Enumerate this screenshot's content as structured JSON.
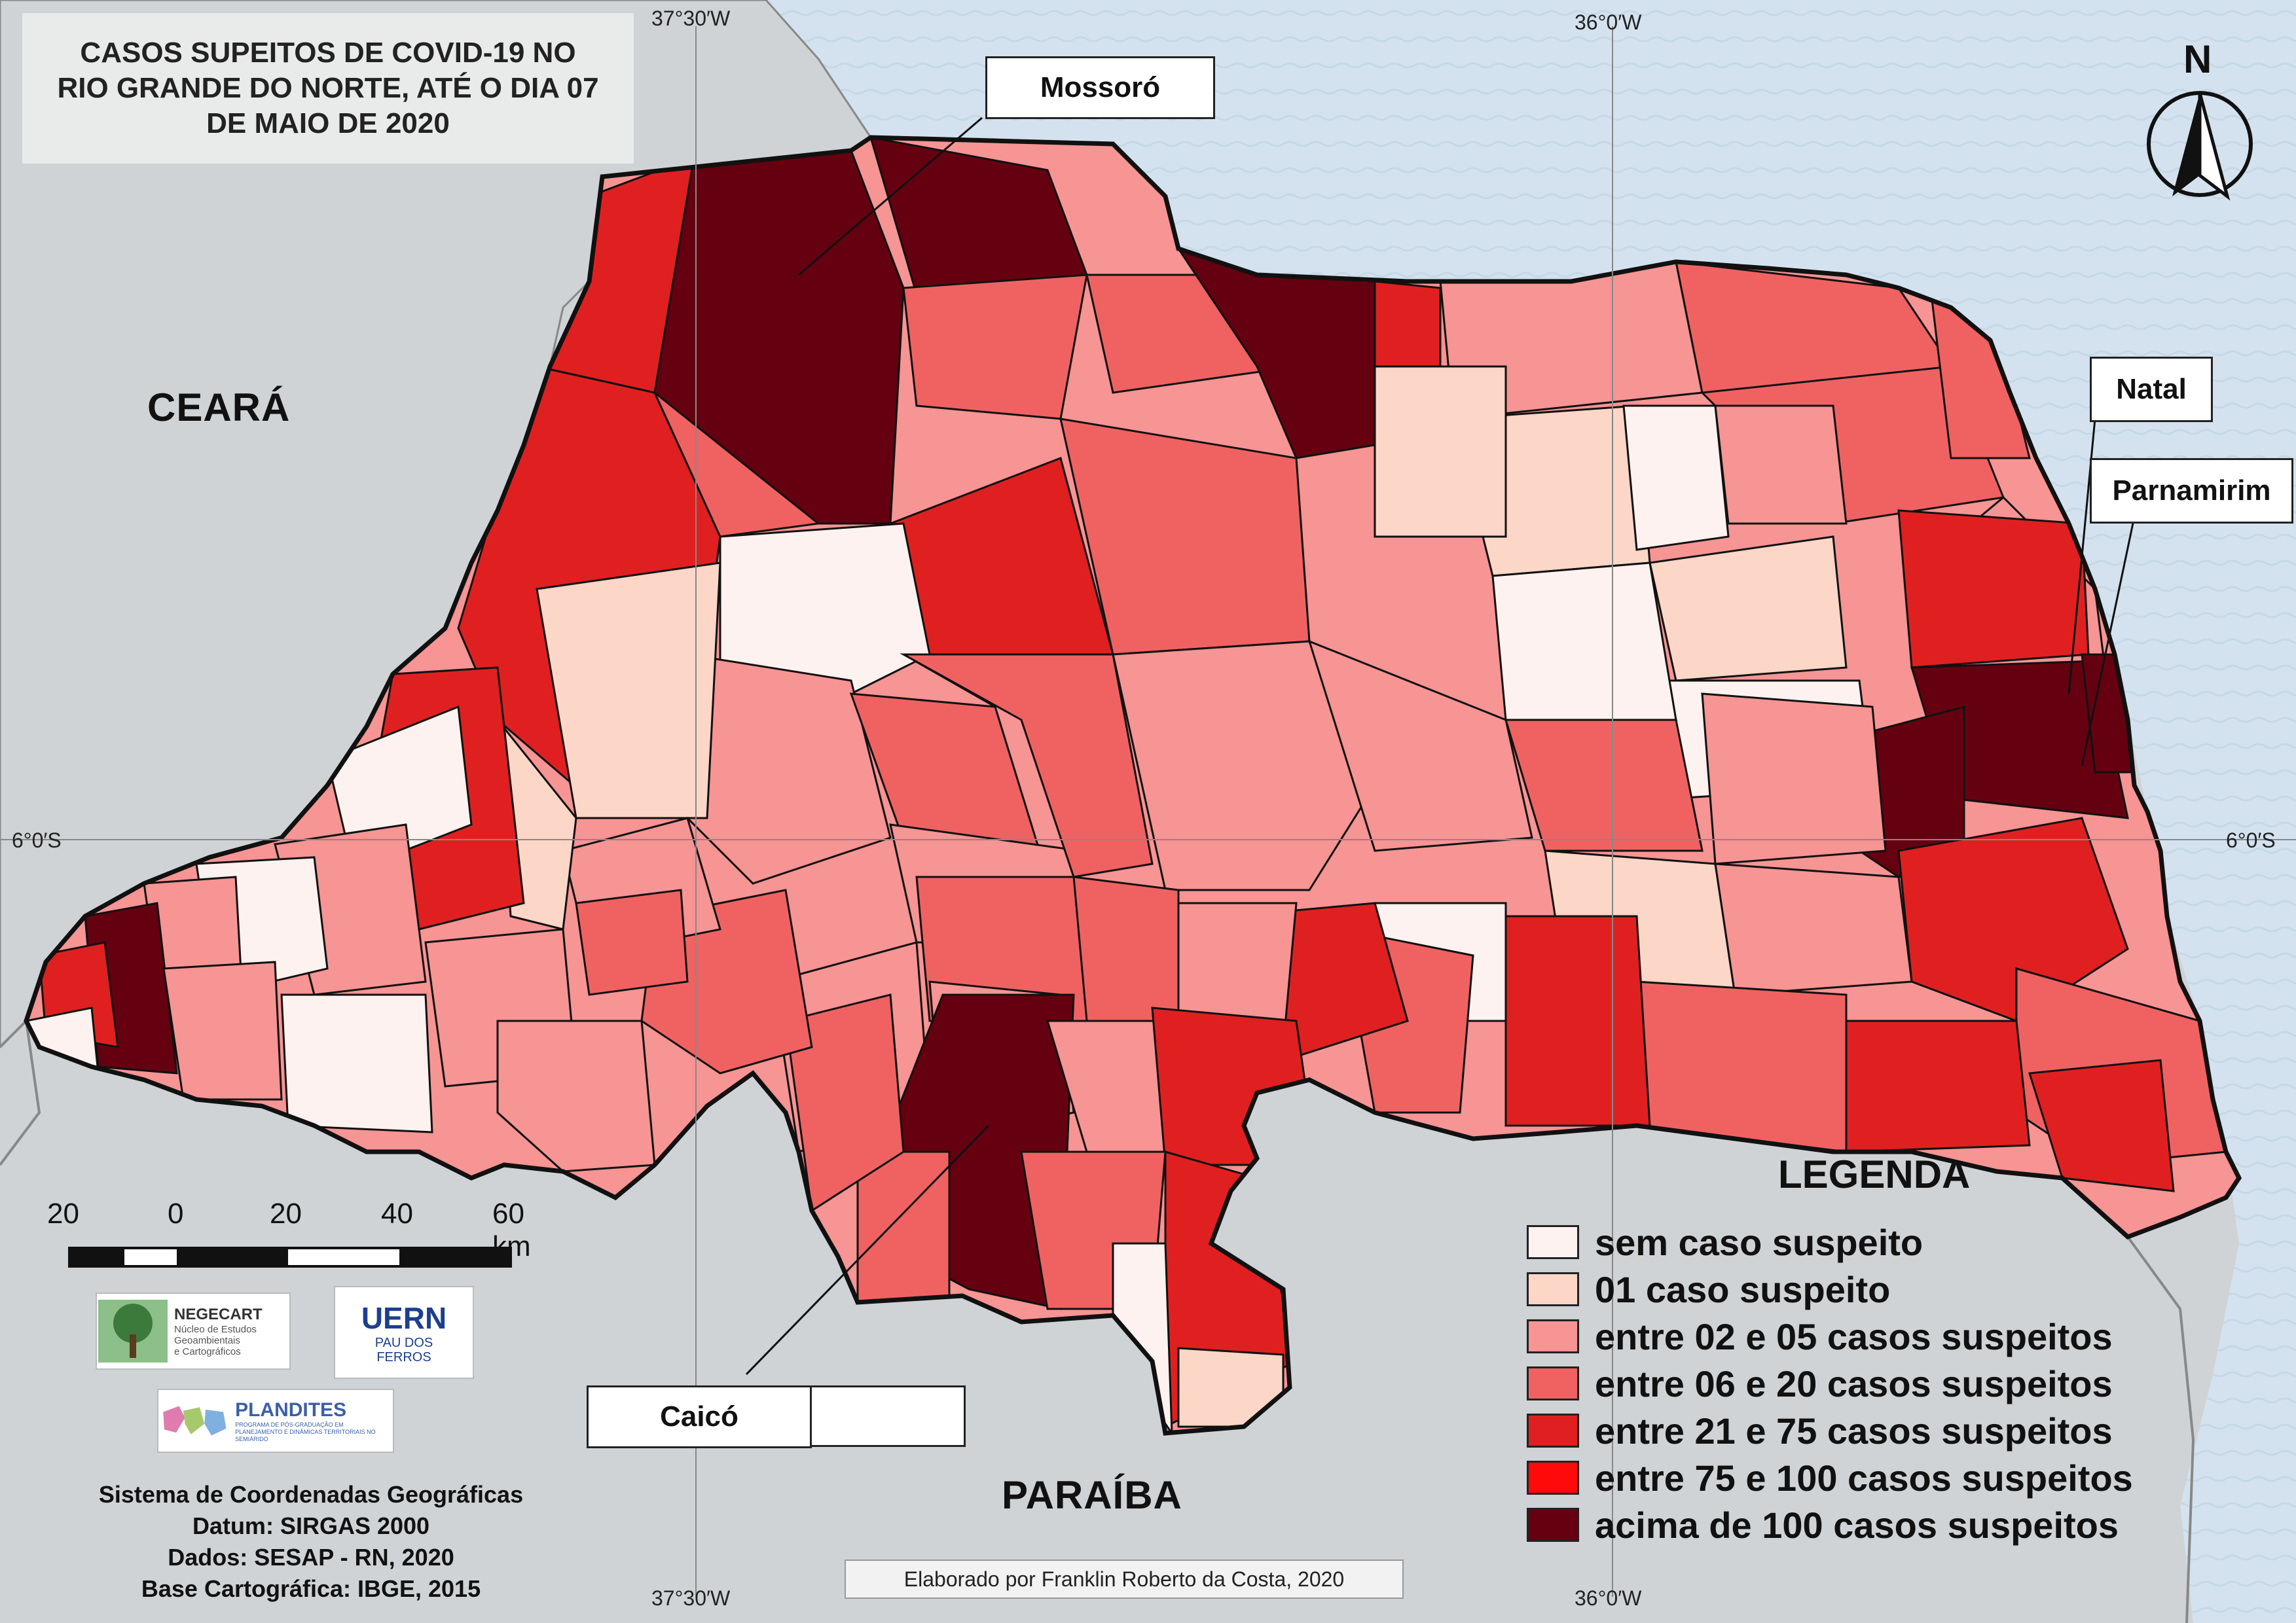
{
  "title": "CASOS SUPEITOS DE COVID-19 NO\nRIO GRANDE DO NORTE, ATÉ O DIA 07\nDE MAIO DE 2020",
  "coords": {
    "top_left_lon": "37°30′W",
    "top_right_lon": "36°0′W",
    "bottom_left_lon": "37°30′W",
    "bottom_right_lon": "36°0′W",
    "left_lat": "6°0′S",
    "right_lat": "6°0′S"
  },
  "north_label": "N",
  "neighbor_states": {
    "ceara": "CEARÁ",
    "paraiba": "PARAÍBA"
  },
  "cities": {
    "mossoro": "Mossoró",
    "natal": "Natal",
    "parnamirim": "Parnamirim",
    "caico": "Caicó"
  },
  "scale": {
    "labels": [
      "20",
      "0",
      "20",
      "40",
      "60 km"
    ]
  },
  "logos": {
    "negecart": {
      "name": "NEGECART",
      "subtitle": "Núcleo de Estudos\nGeoambientais\ne Cartográficos"
    },
    "uern": {
      "name": "UERN",
      "subtitle": "PAU DOS\nFERROS"
    },
    "plandites": {
      "name": "PLANDITES",
      "subtitle": "PROGRAMA DE PÓS-GRADUAÇÃO EM\nPLANEJAMENTO E DINÂMICAS TERRITORIAIS NO SEMIÁRIDO"
    }
  },
  "info_lines": [
    "Sistema de Coordenadas Geográficas",
    "Datum: SIRGAS 2000",
    "Dados: SESAP - RN, 2020",
    "Base Cartográfica: IBGE, 2015"
  ],
  "credit": "Elaborado por Franklin Roberto da Costa, 2020",
  "legend": {
    "title": "LEGENDA",
    "items": [
      {
        "label": "sem caso suspeito",
        "color": "#fdf2ef"
      },
      {
        "label": "01 caso suspeito",
        "color": "#fcd6c6"
      },
      {
        "label": "entre 02 e 05 casos suspeitos",
        "color": "#f79494"
      },
      {
        "label": "entre 06 e 20 casos suspeitos",
        "color": "#f06262"
      },
      {
        "label": "entre 21 e 75 casos suspeitos",
        "color": "#e02020"
      },
      {
        "label": "entre 75 e 100 casos suspeitos",
        "color": "#ff0a0a"
      },
      {
        "label": "acima de 100 casos suspeitos",
        "color": "#650010"
      }
    ]
  },
  "colors": {
    "sea": "#d3e2ee",
    "land": "#cfd3d6",
    "border": "#111111"
  }
}
